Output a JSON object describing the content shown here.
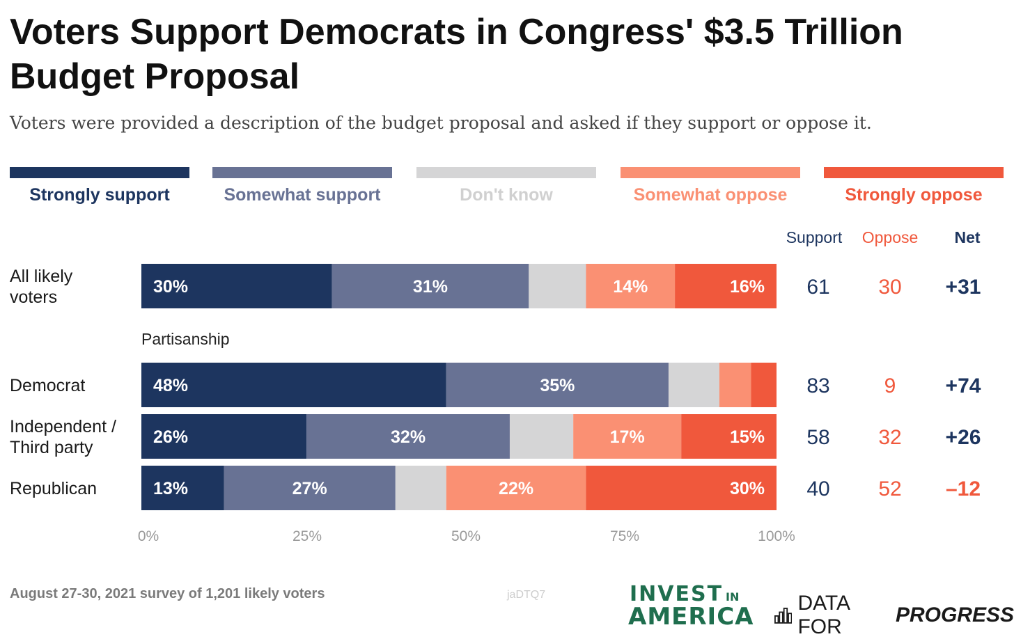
{
  "title": "Voters Support Democrats in Congress' $3.5 Trillion Budget Proposal",
  "subtitle": "Voters were provided a description of the budget proposal and asked if they support or oppose it.",
  "legend": [
    {
      "label": "Strongly support",
      "color": "#1d355f"
    },
    {
      "label": "Somewhat support",
      "color": "#687294"
    },
    {
      "label": "Don't know",
      "color": "#d5d5d6"
    },
    {
      "label": "Somewhat oppose",
      "color": "#fa9073"
    },
    {
      "label": "Strongly oppose",
      "color": "#f0583c"
    }
  ],
  "columns": {
    "support": "Support",
    "oppose": "Oppose",
    "net": "Net"
  },
  "group_label": "Partisanship",
  "rows": [
    {
      "label_line1": "All likely",
      "label_line2": "voters",
      "support": "61",
      "oppose": "30",
      "net": "+31"
    },
    {
      "label_line1": "Democrat",
      "label_line2": "",
      "support": "83",
      "oppose": "9",
      "net": "+74"
    },
    {
      "label_line1": "Independent /",
      "label_line2": "Third party",
      "support": "58",
      "oppose": "32",
      "net": "+26"
    },
    {
      "label_line1": "Republican",
      "label_line2": "",
      "support": "40",
      "oppose": "52",
      "net": "–12"
    }
  ],
  "chart_data": {
    "type": "bar",
    "orientation": "horizontal-stacked",
    "categories": [
      "All likely voters",
      "Democrat",
      "Independent / Third party",
      "Republican"
    ],
    "series": [
      {
        "name": "Strongly support",
        "values": [
          30,
          48,
          26,
          13
        ],
        "labels": [
          "30%",
          "48%",
          "26%",
          "13%"
        ]
      },
      {
        "name": "Somewhat support",
        "values": [
          31,
          35,
          32,
          27
        ],
        "labels": [
          "31%",
          "35%",
          "32%",
          "27%"
        ]
      },
      {
        "name": "Don't know",
        "values": [
          9,
          8,
          10,
          8
        ],
        "labels": [
          "",
          "",
          "",
          ""
        ]
      },
      {
        "name": "Somewhat oppose",
        "values": [
          14,
          5,
          17,
          22
        ],
        "labels": [
          "14%",
          "",
          "17%",
          "22%"
        ]
      },
      {
        "name": "Strongly oppose",
        "values": [
          16,
          4,
          15,
          30
        ],
        "labels": [
          "16%",
          "",
          "15%",
          "30%"
        ]
      }
    ],
    "x_ticks": [
      "0%",
      "25%",
      "50%",
      "75%",
      "100%"
    ],
    "xlim": [
      0,
      100
    ]
  },
  "footer": {
    "note": "August 27-30, 2021 survey of 1,201 likely voters",
    "code": "jaDTQ7",
    "invest_line1": "INVEST",
    "invest_in": "IN",
    "invest_line2": "AMERICA",
    "dfp_plain": "DATA FOR",
    "dfp_bold": "PROGRESS"
  }
}
